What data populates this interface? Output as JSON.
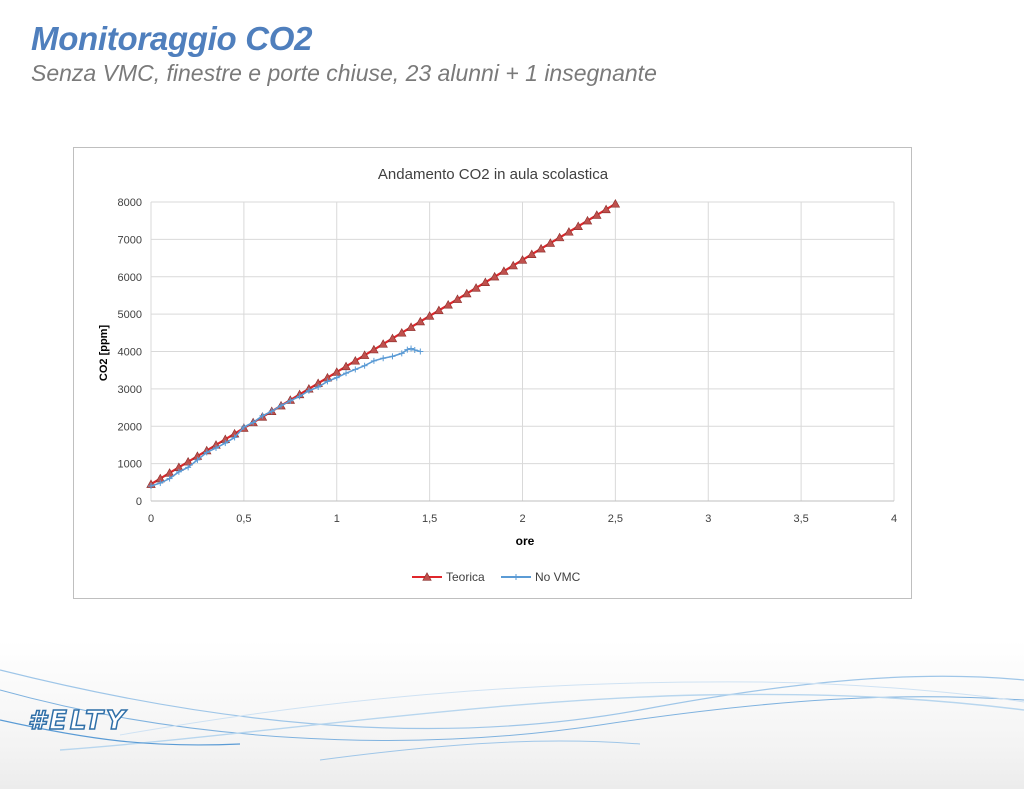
{
  "slide": {
    "title": "Monitoraggio CO2",
    "subtitle": "Senza VMC, finestre e porte chiuse, 23 alunni + 1 insegnante",
    "brand": "#ELTY"
  },
  "colors": {
    "title": "#4f7fbd",
    "teorica_line": "#e0262b",
    "teorica_marker": "#c0504d",
    "novmc_line": "#5b9bd5",
    "grid": "#d9d9d9"
  },
  "chart_data": {
    "type": "line",
    "title": "Andamento CO2 in aula scolastica",
    "xlabel": "ore",
    "ylabel": "CO2 [ppm]",
    "xlim": [
      0,
      4
    ],
    "ylim": [
      0,
      8000
    ],
    "x_ticks": [
      0,
      0.5,
      1,
      1.5,
      2,
      2.5,
      3,
      3.5,
      4
    ],
    "x_tick_labels": [
      "0",
      "0,5",
      "1",
      "1,5",
      "2",
      "2,5",
      "3",
      "3,5",
      "4"
    ],
    "y_ticks": [
      0,
      1000,
      2000,
      3000,
      4000,
      5000,
      6000,
      7000,
      8000
    ],
    "y_tick_labels": [
      "0",
      "1000",
      "2000",
      "3000",
      "4000",
      "5000",
      "6000",
      "7000",
      "8000"
    ],
    "grid": true,
    "legend_position": "bottom",
    "series": [
      {
        "name": "Teorica",
        "marker": "triangle",
        "x": [
          0,
          0.05,
          0.1,
          0.15,
          0.2,
          0.25,
          0.3,
          0.35,
          0.4,
          0.45,
          0.5,
          0.55,
          0.6,
          0.65,
          0.7,
          0.75,
          0.8,
          0.85,
          0.9,
          0.95,
          1,
          1.05,
          1.1,
          1.15,
          1.2,
          1.25,
          1.3,
          1.35,
          1.4,
          1.45,
          1.5,
          1.55,
          1.6,
          1.65,
          1.7,
          1.75,
          1.8,
          1.85,
          1.9,
          1.95,
          2,
          2.05,
          2.1,
          2.15,
          2.2,
          2.25,
          2.3,
          2.35,
          2.4,
          2.45,
          2.5
        ],
        "y": [
          450,
          600,
          750,
          900,
          1050,
          1200,
          1350,
          1500,
          1650,
          1800,
          1950,
          2100,
          2250,
          2400,
          2550,
          2700,
          2850,
          3000,
          3150,
          3300,
          3450,
          3600,
          3750,
          3900,
          4050,
          4200,
          4350,
          4500,
          4650,
          4800,
          4950,
          5100,
          5250,
          5400,
          5550,
          5700,
          5850,
          6000,
          6150,
          6300,
          6450,
          6600,
          6750,
          6900,
          7050,
          7200,
          7350,
          7500,
          7650,
          7800,
          7950
        ]
      },
      {
        "name": "No VMC",
        "marker": "plus",
        "x": [
          0,
          0.05,
          0.1,
          0.15,
          0.2,
          0.25,
          0.3,
          0.35,
          0.4,
          0.45,
          0.5,
          0.55,
          0.6,
          0.65,
          0.7,
          0.75,
          0.8,
          0.85,
          0.9,
          0.95,
          1,
          1.05,
          1.1,
          1.15,
          1.2,
          1.25,
          1.3,
          1.35,
          1.38,
          1.4,
          1.42,
          1.45
        ],
        "y": [
          400,
          480,
          600,
          780,
          900,
          1100,
          1300,
          1420,
          1550,
          1700,
          1980,
          2100,
          2280,
          2400,
          2550,
          2680,
          2800,
          2950,
          3050,
          3200,
          3300,
          3420,
          3520,
          3620,
          3750,
          3820,
          3870,
          3950,
          4050,
          4080,
          4040,
          4000
        ]
      }
    ]
  }
}
